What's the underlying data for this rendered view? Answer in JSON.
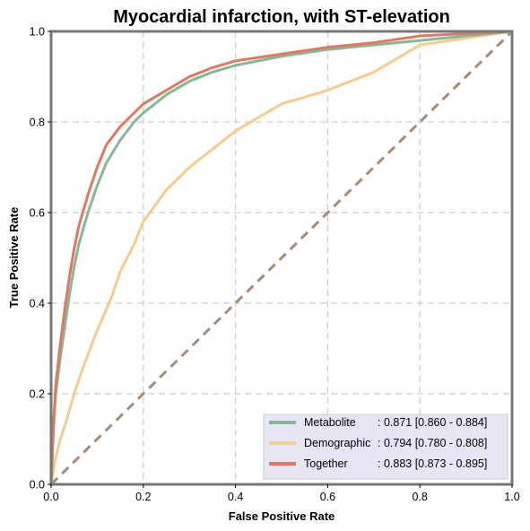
{
  "chart_data": {
    "type": "line",
    "title": "Myocardial infarction, with ST-elevation",
    "xlabel": "False Positive Rate",
    "ylabel": "True Positive Rate",
    "xlim": [
      0,
      1
    ],
    "ylim": [
      0,
      1
    ],
    "xticks": [
      "0.0",
      "0.2",
      "0.4",
      "0.6",
      "0.8",
      "1.0"
    ],
    "yticks": [
      "0.0",
      "0.2",
      "0.4",
      "0.6",
      "0.8",
      "1.0"
    ],
    "grid": true,
    "legend_position": "bottom-right",
    "diagonal": {
      "color": "#a68b7a",
      "style": "dashed"
    },
    "series": [
      {
        "name": "Metabolite",
        "auc_label": ": 0.871 [0.860 - 0.884]",
        "color": "#86b898",
        "x": [
          0,
          0.005,
          0.01,
          0.02,
          0.03,
          0.04,
          0.05,
          0.06,
          0.08,
          0.1,
          0.12,
          0.15,
          0.18,
          0.2,
          0.25,
          0.3,
          0.35,
          0.4,
          0.5,
          0.6,
          0.7,
          0.8,
          0.9,
          1.0
        ],
        "y": [
          0,
          0.12,
          0.2,
          0.28,
          0.35,
          0.42,
          0.48,
          0.53,
          0.6,
          0.66,
          0.71,
          0.76,
          0.8,
          0.82,
          0.86,
          0.89,
          0.91,
          0.925,
          0.945,
          0.96,
          0.97,
          0.98,
          0.99,
          1.0
        ]
      },
      {
        "name": "Demographic",
        "auc_label": ": 0.794 [0.780 - 0.808]",
        "color": "#f2cd8c",
        "x": [
          0,
          0.01,
          0.02,
          0.03,
          0.05,
          0.07,
          0.1,
          0.13,
          0.15,
          0.18,
          0.2,
          0.25,
          0.3,
          0.35,
          0.4,
          0.45,
          0.5,
          0.6,
          0.7,
          0.8,
          0.9,
          1.0
        ],
        "y": [
          0,
          0.06,
          0.1,
          0.13,
          0.2,
          0.26,
          0.34,
          0.41,
          0.47,
          0.53,
          0.58,
          0.65,
          0.7,
          0.74,
          0.78,
          0.81,
          0.84,
          0.87,
          0.91,
          0.97,
          0.985,
          1.0
        ]
      },
      {
        "name": "Together",
        "auc_label": ": 0.883 [0.873 - 0.895]",
        "color": "#e07a5f",
        "x": [
          0,
          0.005,
          0.01,
          0.02,
          0.03,
          0.04,
          0.05,
          0.06,
          0.08,
          0.1,
          0.12,
          0.15,
          0.18,
          0.2,
          0.25,
          0.3,
          0.35,
          0.4,
          0.5,
          0.6,
          0.7,
          0.8,
          0.9,
          1.0
        ],
        "y": [
          0,
          0.13,
          0.22,
          0.31,
          0.39,
          0.46,
          0.52,
          0.57,
          0.64,
          0.7,
          0.75,
          0.79,
          0.82,
          0.84,
          0.87,
          0.9,
          0.92,
          0.935,
          0.95,
          0.965,
          0.975,
          0.99,
          0.995,
          1.0
        ]
      }
    ]
  }
}
